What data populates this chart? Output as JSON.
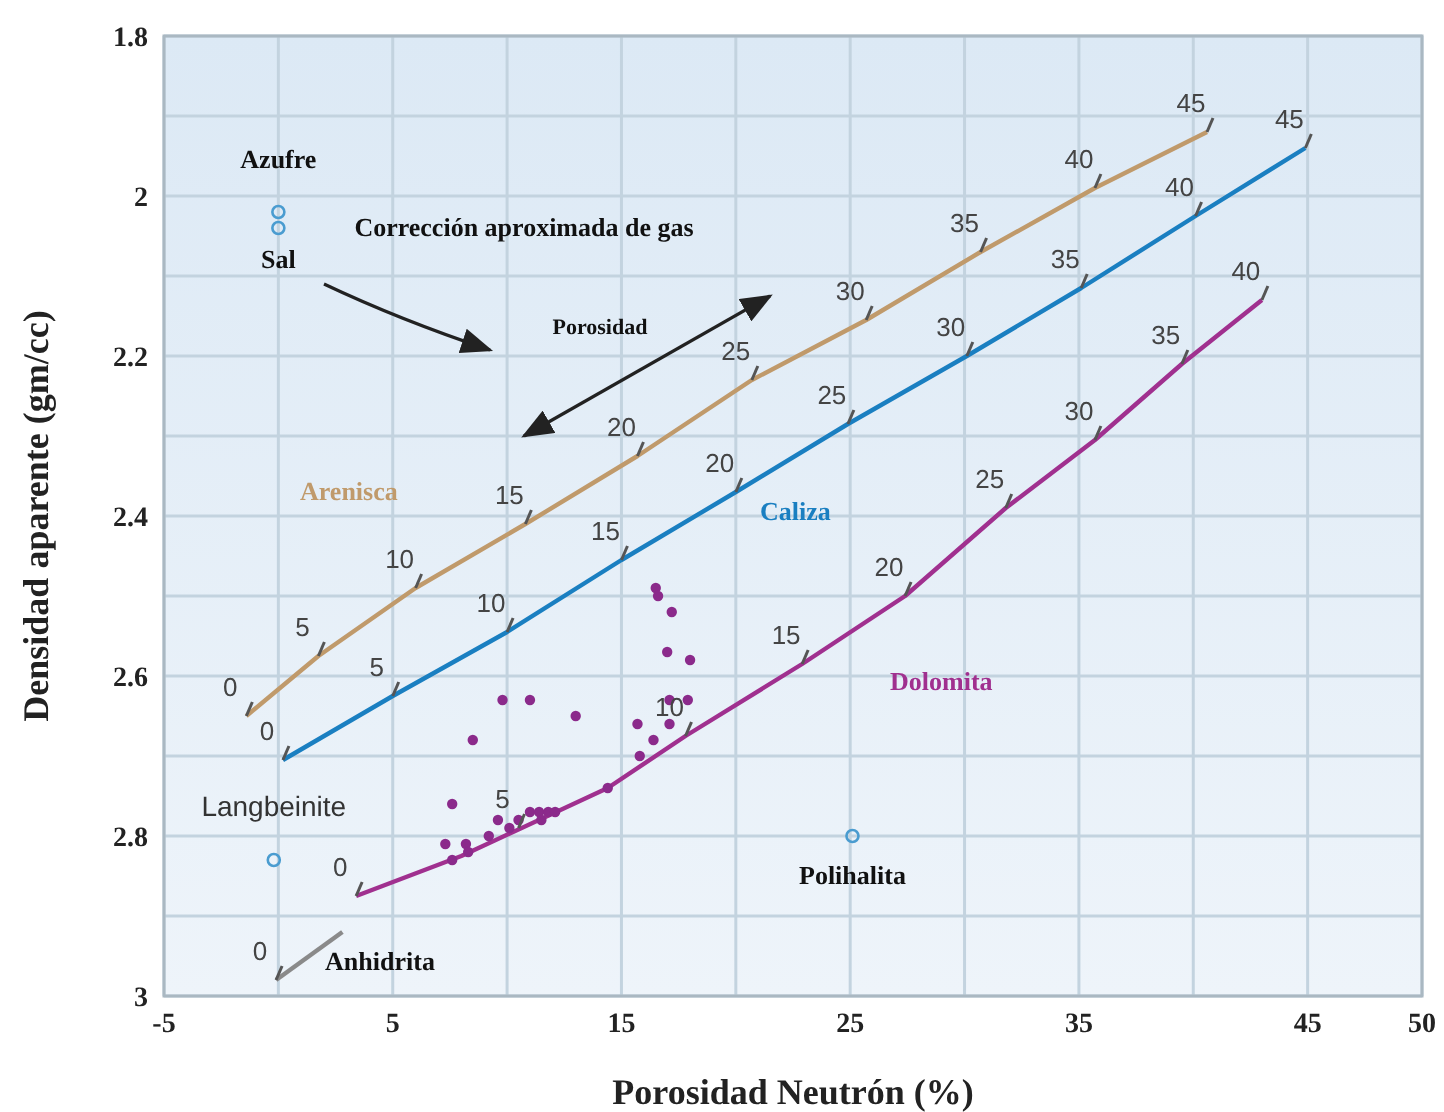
{
  "chart_data": {
    "type": "line",
    "xlabel": "Porosidad Neutrón (%)",
    "ylabel": "Densidad aparente (gm/cc)",
    "xlim": [
      -5,
      50
    ],
    "xticks": [
      -5,
      {
        "value": 0,
        "label": null
      },
      5,
      {
        "value": 10,
        "label": null
      },
      15,
      {
        "value": 20,
        "label": null
      },
      25,
      {
        "value": 30,
        "label": null
      },
      35,
      {
        "value": 40,
        "label": null
      },
      45,
      50
    ],
    "ylim": [
      3,
      1.8
    ],
    "yticks": [
      {
        "value": 1.8,
        "label": "1.8"
      },
      {
        "value": 1.9,
        "label": null
      },
      2,
      {
        "value": 2.1,
        "label": null
      },
      2.2,
      {
        "value": 2.3,
        "label": null
      },
      2.4,
      {
        "value": 2.5,
        "label": null
      },
      2.6,
      {
        "value": 2.7,
        "label": null
      },
      2.8,
      {
        "value": 2.9,
        "label": null
      },
      3
    ],
    "grid": true,
    "series": [
      {
        "name": "Arenisca",
        "color": "#c09a6b",
        "x": [
          -1.4,
          1.75,
          6.0,
          10.8,
          15.7,
          20.7,
          25.7,
          30.7,
          35.7,
          40.6
        ],
        "values": [
          2.65,
          2.575,
          2.49,
          2.41,
          2.325,
          2.23,
          2.155,
          2.07,
          1.99,
          1.92
        ]
      },
      {
        "name": "Caliza",
        "color": "#1a7fc1",
        "x": [
          0.2,
          5.0,
          10.0,
          15.0,
          20.0,
          24.9,
          30.1,
          35.1,
          40.1,
          44.9
        ],
        "values": [
          2.705,
          2.625,
          2.545,
          2.455,
          2.37,
          2.285,
          2.2,
          2.115,
          2.025,
          1.94
        ]
      },
      {
        "name": "Dolomita",
        "color": "#a0308f",
        "x": [
          3.4,
          8.0,
          14.4,
          17.8,
          22.9,
          27.4,
          31.8,
          35.7,
          39.5,
          43.0
        ],
        "values": [
          2.875,
          2.825,
          2.74,
          2.675,
          2.585,
          2.5,
          2.39,
          2.305,
          2.21,
          2.13
        ]
      },
      {
        "name": "Anhidrita",
        "color": "#8a8a8a",
        "x": [
          -0.1,
          2.8
        ],
        "values": [
          2.98,
          2.92
        ]
      },
      {
        "type": "scatter",
        "color": "#8b2a8b",
        "x": [
          16.5,
          16.6,
          17.2,
          17.0,
          18.0,
          9.8,
          11.0,
          13.0,
          17.1,
          17.9,
          15.7,
          16.4,
          17.1,
          8.5,
          15.8,
          14.4,
          7.6,
          7.3,
          8.2,
          9.2,
          9.6,
          10.1,
          10.5,
          11.0,
          11.4,
          11.8,
          12.1,
          11.5,
          7.6,
          8.3
        ],
        "values": [
          2.49,
          2.5,
          2.52,
          2.57,
          2.58,
          2.63,
          2.63,
          2.65,
          2.63,
          2.63,
          2.66,
          2.68,
          2.66,
          2.68,
          2.7,
          2.74,
          2.76,
          2.81,
          2.81,
          2.8,
          2.78,
          2.79,
          2.78,
          2.77,
          2.77,
          2.77,
          2.77,
          2.78,
          2.83,
          2.82
        ]
      },
      {
        "name": "Azufre",
        "type": "scatter",
        "color": "#4a9cd0",
        "x": [
          0
        ],
        "values": [
          2.02
        ]
      },
      {
        "name": "Sal",
        "type": "scatter",
        "color": "#4a9cd0",
        "x": [
          0
        ],
        "values": [
          2.04
        ]
      },
      {
        "name": "Langbeinite",
        "type": "scatter",
        "color": "#4a9cd0",
        "x": [
          -0.2
        ],
        "values": [
          2.83
        ]
      },
      {
        "name": "Polihalita",
        "type": "scatter",
        "color": "#4a9cd0",
        "x": [
          25.1
        ],
        "values": [
          2.8
        ]
      }
    ],
    "annotations": [
      "Corrección aproximada de gas",
      "Porosidad",
      {
        "text": "0",
        "x": -1.4,
        "y": 2.65
      },
      {
        "text": "5",
        "x": 1.75,
        "y": 2.575
      },
      {
        "text": "10",
        "x": 6.0,
        "y": 2.49
      },
      {
        "text": "15",
        "x": 10.8,
        "y": 2.41
      },
      {
        "text": "20",
        "x": 15.7,
        "y": 2.325
      },
      {
        "text": "25",
        "x": 20.7,
        "y": 2.23
      },
      {
        "text": "30",
        "x": 25.7,
        "y": 2.155
      },
      {
        "text": "35",
        "x": 30.7,
        "y": 2.07
      },
      {
        "text": "40",
        "x": 35.7,
        "y": 1.99
      },
      {
        "text": "45",
        "x": 40.6,
        "y": 1.92
      },
      {
        "text": "0",
        "x": 0.2,
        "y": 2.705
      },
      {
        "text": "5",
        "x": 5.0,
        "y": 2.625
      },
      {
        "text": "10",
        "x": 10.0,
        "y": 2.545
      },
      {
        "text": "15",
        "x": 15.0,
        "y": 2.455
      },
      {
        "text": "20",
        "x": 20.0,
        "y": 2.37
      },
      {
        "text": "25",
        "x": 24.9,
        "y": 2.285
      },
      {
        "text": "30",
        "x": 30.1,
        "y": 2.2
      },
      {
        "text": "35",
        "x": 35.1,
        "y": 2.115
      },
      {
        "text": "40",
        "x": 40.1,
        "y": 2.025
      },
      {
        "text": "45",
        "x": 44.9,
        "y": 1.94
      },
      {
        "text": "0",
        "x": 3.4,
        "y": 2.875
      },
      {
        "text": "5",
        "x": 10.5,
        "y": 2.79
      },
      {
        "text": "10",
        "x": 17.8,
        "y": 2.675
      },
      {
        "text": "15",
        "x": 22.9,
        "y": 2.585
      },
      {
        "text": "20",
        "x": 27.4,
        "y": 2.5
      },
      {
        "text": "25",
        "x": 31.8,
        "y": 2.39
      },
      {
        "text": "30",
        "x": 35.7,
        "y": 2.305
      },
      {
        "text": "35",
        "x": 39.5,
        "y": 2.21
      },
      {
        "text": "40",
        "x": 43.0,
        "y": 2.13
      },
      {
        "text": "0",
        "x": -0.1,
        "y": 2.98
      }
    ]
  }
}
